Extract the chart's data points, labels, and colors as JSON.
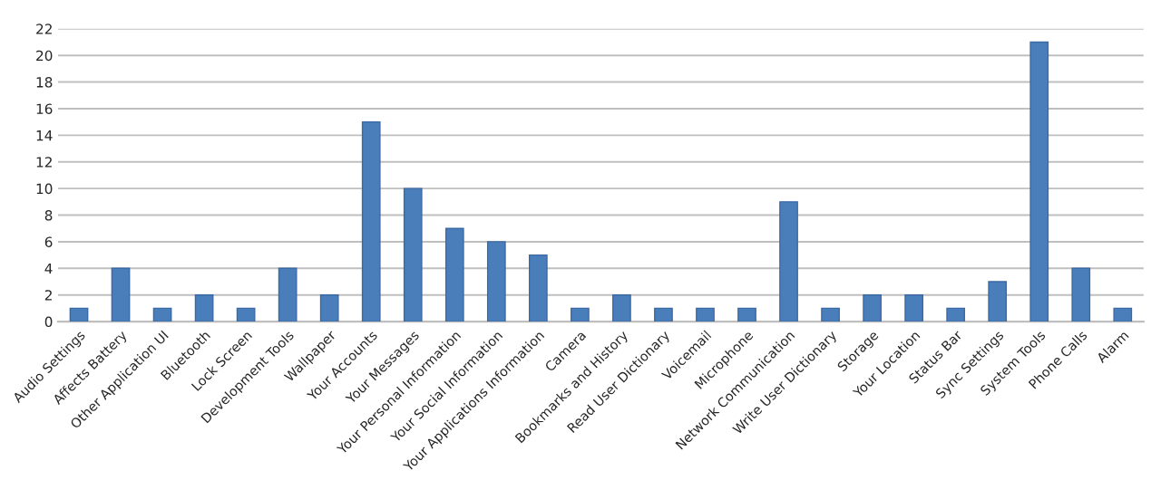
{
  "chart_data": {
    "type": "bar",
    "categories": [
      "Audio Settings",
      "Affects Battery",
      "Other Application UI",
      "Bluetooth",
      "Lock Screen",
      "Development Tools",
      "Wallpaper",
      "Your Accounts",
      "Your Messages",
      "Your Personal Information",
      "Your Social Information",
      "Your Applications Information",
      "Camera",
      "Bookmarks and History",
      "Read User Dictionary",
      "Voicemail",
      "Microphone",
      "Network Communication",
      "Write User Dictionary",
      "Storage",
      "Your Location",
      "Status Bar",
      "Sync Settings",
      "System Tools",
      "Phone Calls",
      "Alarm"
    ],
    "values": [
      1,
      4,
      1,
      2,
      1,
      4,
      2,
      15,
      10,
      7,
      6,
      5,
      1,
      2,
      1,
      1,
      1,
      9,
      1,
      2,
      2,
      1,
      3,
      21,
      4,
      1
    ],
    "color": "#4a7ebb",
    "ylim": [
      0,
      22
    ],
    "yticks": [
      0,
      2,
      4,
      6,
      8,
      10,
      12,
      14,
      16,
      18,
      20,
      22
    ],
    "grid": "y"
  }
}
